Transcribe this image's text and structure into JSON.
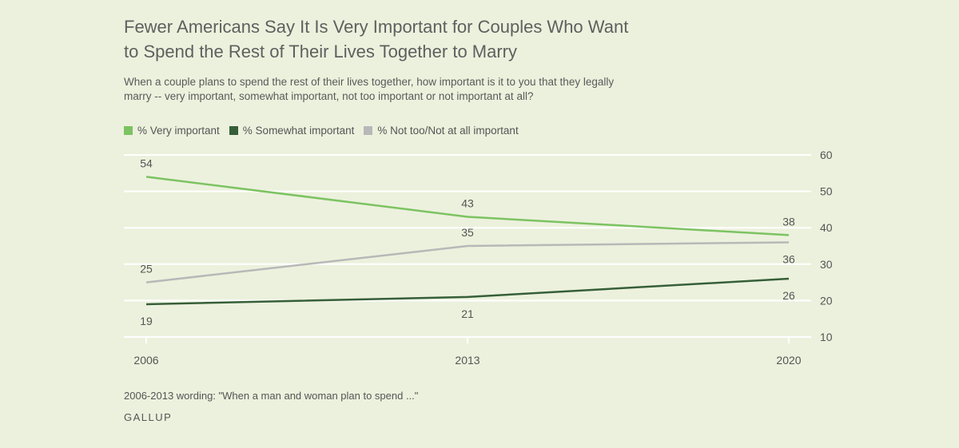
{
  "header": {
    "title_line1": "Fewer Americans Say It Is Very Important for Couples Who Want",
    "title_line2": "to Spend the Rest of Their Lives Together to Marry",
    "subtitle_line1": "When a couple plans to spend the rest of their lives together, how important is it to you that they legally",
    "subtitle_line2": "marry -- very important, somewhat important, not too important or not important at all?"
  },
  "footer": {
    "note": "2006-2013 wording: \"When a man and woman plan to spend ...\"",
    "source": "GALLUP"
  },
  "chart_data": {
    "type": "line",
    "title": "Fewer Americans Say It Is Very Important for Couples Who Want to Spend the Rest of Their Lives Together to Marry",
    "x": [
      "2006",
      "2013",
      "2020"
    ],
    "x_numeric": [
      2006,
      2013,
      2020
    ],
    "ylim": [
      10,
      60
    ],
    "yticks": [
      10,
      20,
      30,
      40,
      50,
      60
    ],
    "grid": true,
    "y_axis_side": "right",
    "legend_position": "top-left",
    "series": [
      {
        "name": "% Very important",
        "values": [
          54,
          43,
          38
        ],
        "color": "#7cc362",
        "label_side": [
          "above",
          "above",
          "above"
        ]
      },
      {
        "name": "% Somewhat important",
        "values": [
          19,
          21,
          26
        ],
        "color": "#365f38",
        "label_side": [
          "below",
          "below",
          "below"
        ]
      },
      {
        "name": "% Not too/Not at all important",
        "values": [
          25,
          35,
          36
        ],
        "color": "#b8b8b8",
        "label_side": [
          "above",
          "above",
          "below"
        ]
      }
    ]
  }
}
